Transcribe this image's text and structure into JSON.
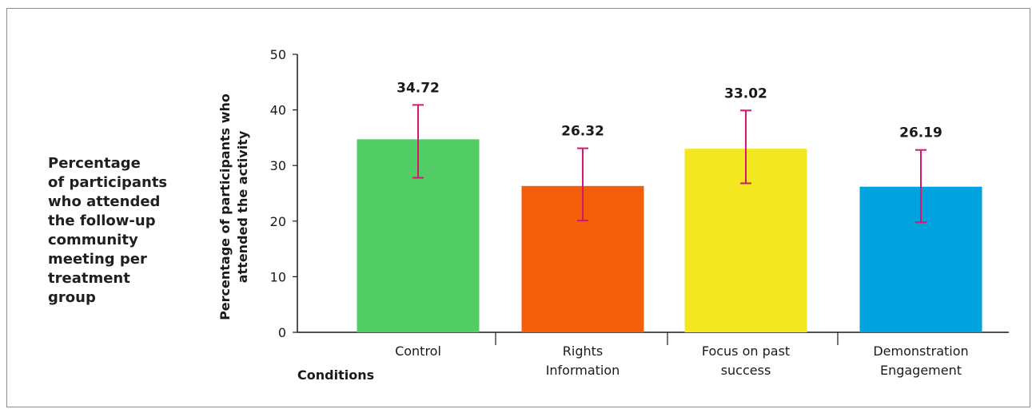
{
  "caption_lines": [
    "Percentage",
    "of participants",
    "who attended",
    "the follow-up",
    "community",
    "meeting per",
    "treatment",
    "group"
  ],
  "chart_data": {
    "type": "bar",
    "categories": [
      [
        "Control"
      ],
      [
        "Rights",
        "Information"
      ],
      [
        "Focus on past",
        "success"
      ],
      [
        "Demonstration",
        "Engagement"
      ]
    ],
    "values": [
      34.72,
      26.32,
      33.02,
      26.19
    ],
    "value_labels": [
      "34.72",
      "26.32",
      "33.02",
      "26.19"
    ],
    "error_bars": [
      [
        27.8,
        40.9
      ],
      [
        20.1,
        33.1
      ],
      [
        26.8,
        39.9
      ],
      [
        19.8,
        32.8
      ]
    ],
    "colors": [
      "#52cd66",
      "#f45d0a",
      "#f3e81f",
      "#00a3de"
    ],
    "error_color": "#d6176f",
    "ylabel_lines": [
      "Percentage of participants who",
      "attended the activity"
    ],
    "xlabel": "Conditions",
    "ylim": [
      0,
      50
    ],
    "yticks": [
      "0",
      "10",
      "20",
      "30",
      "40",
      "50"
    ],
    "grid": false
  }
}
